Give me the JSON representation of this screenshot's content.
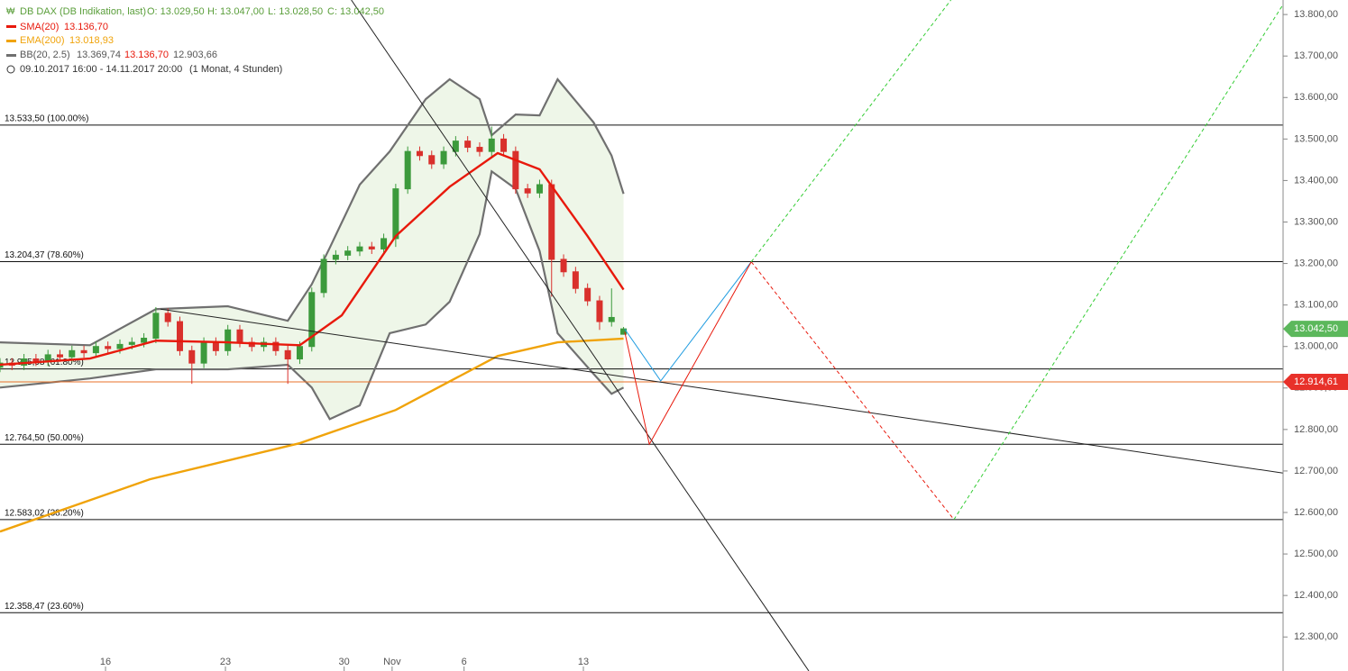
{
  "header": {
    "title": "DB DAX (DB Indikation, last)",
    "ohlc": [
      "O: 13.029,50",
      "H: 13.047,00",
      "L: 13.028,50",
      "C: 13.042,50"
    ],
    "sma_value": "13.136,70",
    "ema_value": "13.018,93",
    "bb_values": [
      "13.369,74",
      "13.136,70",
      "12.903,66"
    ],
    "range": "09.10.2017 16:00 - 14.11.2017 20:00",
    "period": "(1 Monat, 4 Stunden)"
  },
  "chart_data": {
    "type": "candlestick",
    "x": [
      0,
      2,
      4,
      6,
      8,
      10,
      12,
      14,
      16,
      18,
      20,
      22,
      24,
      26,
      28,
      30,
      32,
      34,
      36,
      38,
      40,
      42,
      44,
      46,
      48,
      50,
      52,
      54,
      56,
      58,
      60,
      62,
      64,
      66,
      68,
      70,
      72,
      74,
      76,
      78,
      80,
      82,
      84,
      86,
      88,
      90,
      92,
      94,
      96,
      98,
      100,
      102,
      104
    ],
    "open": [
      12950,
      12960,
      12955,
      12970,
      12965,
      12980,
      12975,
      12990,
      12985,
      13000,
      12995,
      13005,
      13010,
      13020,
      13080,
      13060,
      12990,
      12960,
      13010,
      12990,
      13040,
      13010,
      13000,
      13010,
      12990,
      12970,
      13000,
      13130,
      13210,
      13220,
      13230,
      13240,
      13235,
      13260,
      13380,
      13470,
      13460,
      13440,
      13470,
      13495,
      13480,
      13470,
      13500,
      13470,
      13380,
      13370,
      13390,
      13210,
      13180,
      13140,
      13110,
      13060,
      13029.5
    ],
    "high": [
      12972,
      12972,
      12982,
      12982,
      12992,
      12992,
      13002,
      13002,
      13012,
      13012,
      13017,
      13022,
      13032,
      13095,
      13092,
      13072,
      13002,
      13022,
      13022,
      13052,
      13052,
      13022,
      13022,
      13022,
      13002,
      13012,
      13142,
      13222,
      13232,
      13242,
      13252,
      13252,
      13272,
      13392,
      13482,
      13482,
      13472,
      13482,
      13507,
      13507,
      13492,
      13530,
      13512,
      13482,
      13392,
      13402,
      13402,
      13222,
      13192,
      13152,
      13122,
      13140,
      13047
    ],
    "low": [
      12938,
      12943,
      12943,
      12953,
      12953,
      12963,
      12963,
      12973,
      12973,
      12983,
      12983,
      12993,
      12998,
      13008,
      13048,
      12978,
      12910,
      12948,
      12978,
      12978,
      12998,
      12988,
      12988,
      12978,
      12910,
      12958,
      12988,
      13118,
      13198,
      13208,
      13218,
      13223,
      13223,
      13240,
      13368,
      13448,
      13428,
      13428,
      13458,
      13468,
      13458,
      13458,
      13458,
      13368,
      13358,
      13358,
      13120,
      13168,
      13128,
      13098,
      13040,
      13048,
      13028.5
    ],
    "close": [
      12960,
      12955,
      12970,
      12965,
      12980,
      12975,
      12990,
      12985,
      13000,
      12995,
      13005,
      13010,
      13020,
      13080,
      13060,
      12990,
      12960,
      13010,
      12990,
      13040,
      13010,
      13000,
      13010,
      12990,
      12970,
      13000,
      13130,
      13210,
      13220,
      13230,
      13240,
      13235,
      13260,
      13380,
      13470,
      13460,
      13440,
      13470,
      13495,
      13480,
      13470,
      13500,
      13470,
      13380,
      13370,
      13390,
      13210,
      13180,
      13140,
      13110,
      13060,
      13070,
      13042.5
    ],
    "up_color": "#3c9a3c",
    "down_color": "#d9302c",
    "xlim": [
      0,
      214
    ],
    "xticks": [
      {
        "value": 17.6,
        "label": "16"
      },
      {
        "value": 37.6,
        "label": "23"
      },
      {
        "value": 57.4,
        "label": "30"
      },
      {
        "value": 65.4,
        "label": "Nov"
      },
      {
        "value": 77.4,
        "label": "6"
      },
      {
        "value": 97.3,
        "label": "13"
      }
    ],
    "ylim": [
      12218,
      13835
    ],
    "yticks": [
      {
        "value": 13800,
        "label": "13.800,00"
      },
      {
        "value": 13700,
        "label": "13.700,00"
      },
      {
        "value": 13600,
        "label": "13.600,00"
      },
      {
        "value": 13500,
        "label": "13.500,00"
      },
      {
        "value": 13400,
        "label": "13.400,00"
      },
      {
        "value": 13300,
        "label": "13.300,00"
      },
      {
        "value": 13200,
        "label": "13.200,00"
      },
      {
        "value": 13100,
        "label": "13.100,00"
      },
      {
        "value": 13000,
        "label": "13.000,00"
      },
      {
        "value": 12900,
        "label": "12.900,00"
      },
      {
        "value": 12800,
        "label": "12.800,00"
      },
      {
        "value": 12700,
        "label": "12.700,00"
      },
      {
        "value": 12600,
        "label": "12.600,00"
      },
      {
        "value": 12500,
        "label": "12.500,00"
      },
      {
        "value": 12400,
        "label": "12.400,00"
      },
      {
        "value": 12300,
        "label": "12.300,00"
      }
    ],
    "indicators": [
      {
        "name": "SMA(20)",
        "color": "#e8190c",
        "x": [
          0,
          15,
          26,
          38,
          50,
          57,
          66,
          75,
          83,
          90,
          98,
          104
        ],
        "values": [
          12956,
          12971,
          13014,
          13010,
          13003,
          13075,
          13266,
          13385,
          13466,
          13427,
          13266,
          13137
        ]
      },
      {
        "name": "EMA(200)",
        "color": "#f0a30a",
        "x": [
          0,
          25,
          50,
          66,
          83,
          93,
          104
        ],
        "values": [
          12554,
          12680,
          12767,
          12847,
          12977,
          13010,
          13019
        ]
      },
      {
        "name": "BB(20, 2.5)",
        "color": "#707070",
        "fill": "#eef6e8",
        "x": [
          0,
          15,
          26,
          38,
          48,
          52,
          55,
          60,
          65,
          71,
          75,
          80,
          82,
          86,
          90,
          93,
          99,
          102,
          104
        ],
        "upper": [
          13010,
          13003,
          13090,
          13097,
          13062,
          13150,
          13238,
          13390,
          13470,
          13596,
          13644,
          13596,
          13509,
          13559,
          13557,
          13644,
          13540,
          13460,
          13368
        ],
        "lower": [
          12901,
          12923,
          12945,
          12945,
          12956,
          12901,
          12825,
          12858,
          13032,
          13053,
          13108,
          13271,
          13422,
          13380,
          13230,
          13032,
          12934,
          12886,
          12901
        ]
      }
    ],
    "levels": [
      {
        "value": 13533.5,
        "label": "13.533,50 (100.00%)"
      },
      {
        "value": 13204.37,
        "label": "13.204,37 (78.60%)"
      },
      {
        "value": 12945.98,
        "label": "12.945,98 (61.80%)"
      },
      {
        "value": 12764.5,
        "label": "12.764,50 (50.00%)"
      },
      {
        "value": 12583.02,
        "label": "12.583,02 (38.20%)"
      },
      {
        "value": 12358.47,
        "label": "12.358,47 (23.60%)"
      }
    ],
    "price_tags": [
      {
        "value": 13042.5,
        "label": "13.042,50",
        "color": "#5cb85c"
      },
      {
        "value": 12914.61,
        "label": "12.914,61",
        "color": "#e8312a",
        "line_color": "#e8702a"
      }
    ],
    "drawings": [
      {
        "color": "#222222",
        "dashed": false,
        "x": [
          58.6,
          134.9
        ],
        "y": [
          13835,
          12218
        ]
      },
      {
        "color": "#222222",
        "dashed": false,
        "x": [
          26.8,
          214
        ],
        "y": [
          13090,
          12695
        ]
      },
      {
        "color": "#1e9be0",
        "dashed": false,
        "x": [
          104.2,
          110.2,
          125.3
        ],
        "y": [
          13042,
          12917,
          13204
        ]
      },
      {
        "color": "#e8190c",
        "dashed": false,
        "x": [
          104.2,
          108.3,
          125.3
        ],
        "y": [
          13035,
          12764.5,
          13204
        ]
      },
      {
        "color": "#e8190c",
        "dashed": true,
        "x": [
          125.3,
          159.1
        ],
        "y": [
          13204,
          12583
        ]
      },
      {
        "color": "#33cc33",
        "dashed": true,
        "x": [
          125.3,
          158.6
        ],
        "y": [
          13204,
          13835
        ]
      },
      {
        "color": "#33cc33",
        "dashed": true,
        "x": [
          159.1,
          214
        ],
        "y": [
          12583,
          13824
        ]
      }
    ]
  }
}
